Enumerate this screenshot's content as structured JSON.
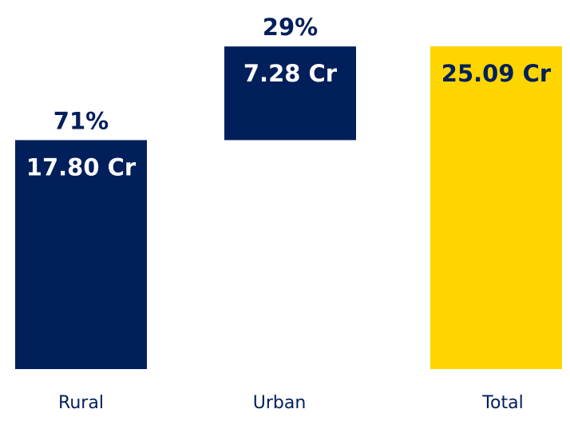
{
  "chart_data": {
    "type": "bar",
    "subtype": "waterfall",
    "unit": "Cr",
    "categories": [
      "Rural",
      "Urban",
      "Total"
    ],
    "values": [
      17.8,
      7.28,
      25.09
    ],
    "value_labels": [
      "17.80 Cr",
      "7.28 Cr",
      "25.09 Cr"
    ],
    "percent_labels": [
      "71%",
      "29%",
      ""
    ],
    "title": "",
    "xlabel": "",
    "ylabel": "",
    "ylim": [
      0,
      25.09
    ],
    "grid": false,
    "legend": "none",
    "colors": {
      "segment": "#001f5b",
      "total": "#ffd500",
      "value_text_on_segment": "#ffffff",
      "value_text_on_total": "#001f5b",
      "percent_text": "#001f5b",
      "category_text": "#001f5b"
    }
  }
}
